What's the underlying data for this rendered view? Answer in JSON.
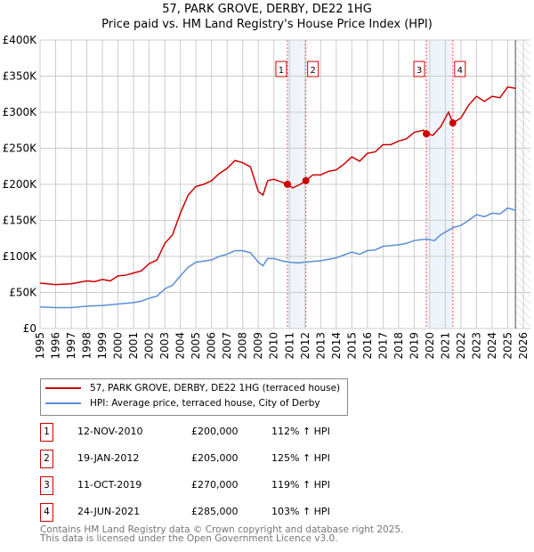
{
  "title": [
    "57, PARK GROVE, DERBY, DE22 1HG",
    "Price paid vs. HM Land Registry's House Price Index (HPI)"
  ],
  "chart_data": {
    "type": "line",
    "ylim": [
      0,
      400000
    ],
    "xlim": [
      1995,
      2026
    ],
    "yticks": [
      {
        "v": 0,
        "l": "£0"
      },
      {
        "v": 50000,
        "l": "£50K"
      },
      {
        "v": 100000,
        "l": "£100K"
      },
      {
        "v": 150000,
        "l": "£150K"
      },
      {
        "v": 200000,
        "l": "£200K"
      },
      {
        "v": 250000,
        "l": "£250K"
      },
      {
        "v": 300000,
        "l": "£300K"
      },
      {
        "v": 350000,
        "l": "£350K"
      },
      {
        "v": 400000,
        "l": "£400K"
      }
    ],
    "xticks": [
      "1995",
      "1996",
      "1997",
      "1998",
      "1999",
      "2000",
      "2001",
      "2002",
      "2003",
      "2004",
      "2005",
      "2006",
      "2007",
      "2008",
      "2009",
      "2010",
      "2011",
      "2012",
      "2013",
      "2014",
      "2015",
      "2016",
      "2017",
      "2018",
      "2019",
      "2020",
      "2021",
      "2022",
      "2023",
      "2024",
      "2025",
      "2026"
    ],
    "shaded": [
      [
        2010.87,
        2012.05
      ],
      [
        2019.78,
        2021.48
      ]
    ],
    "forecast_from": 2025.5,
    "series": [
      {
        "name": "57, PARK GROVE, DERBY, DE22 1HG (terraced house)",
        "color": "#cc0000",
        "points": [
          [
            1995,
            63
          ],
          [
            1996,
            61
          ],
          [
            1997,
            62
          ],
          [
            1998,
            66
          ],
          [
            1998.5,
            65
          ],
          [
            1999,
            68
          ],
          [
            1999.5,
            66
          ],
          [
            2000,
            73
          ],
          [
            2000.5,
            74
          ],
          [
            2001,
            77
          ],
          [
            2001.5,
            80
          ],
          [
            2002,
            90
          ],
          [
            2002.5,
            95
          ],
          [
            2003,
            118
          ],
          [
            2003.5,
            130
          ],
          [
            2004,
            160
          ],
          [
            2004.5,
            185
          ],
          [
            2005,
            197
          ],
          [
            2005.5,
            200
          ],
          [
            2006,
            205
          ],
          [
            2006.5,
            215
          ],
          [
            2007,
            222
          ],
          [
            2007.5,
            233
          ],
          [
            2008,
            230
          ],
          [
            2008.5,
            224
          ],
          [
            2009,
            190
          ],
          [
            2009.3,
            185
          ],
          [
            2009.6,
            205
          ],
          [
            2010,
            207
          ],
          [
            2010.5,
            203
          ],
          [
            2010.87,
            200
          ],
          [
            2011.2,
            195
          ],
          [
            2011.7,
            200
          ],
          [
            2012.05,
            205
          ],
          [
            2012.5,
            213
          ],
          [
            2013,
            213
          ],
          [
            2013.5,
            218
          ],
          [
            2014,
            220
          ],
          [
            2014.5,
            228
          ],
          [
            2015,
            238
          ],
          [
            2015.5,
            232
          ],
          [
            2016,
            243
          ],
          [
            2016.5,
            245
          ],
          [
            2017,
            255
          ],
          [
            2017.5,
            255
          ],
          [
            2018,
            260
          ],
          [
            2018.5,
            263
          ],
          [
            2019,
            272
          ],
          [
            2019.6,
            275
          ],
          [
            2019.78,
            270
          ],
          [
            2020.2,
            268
          ],
          [
            2020.7,
            280
          ],
          [
            2021.2,
            300
          ],
          [
            2021.48,
            285
          ],
          [
            2022,
            292
          ],
          [
            2022.5,
            310
          ],
          [
            2023,
            322
          ],
          [
            2023.5,
            315
          ],
          [
            2024,
            322
          ],
          [
            2024.5,
            320
          ],
          [
            2025,
            335
          ],
          [
            2025.5,
            333
          ]
        ]
      },
      {
        "name": "HPI: Average price, terraced house, City of Derby",
        "color": "#5b8fd4",
        "points": [
          [
            1995,
            30
          ],
          [
            1996,
            29
          ],
          [
            1997,
            29
          ],
          [
            1998,
            31
          ],
          [
            1999,
            32
          ],
          [
            2000,
            34
          ],
          [
            2001,
            36
          ],
          [
            2001.5,
            38
          ],
          [
            2002,
            42
          ],
          [
            2002.5,
            45
          ],
          [
            2003,
            55
          ],
          [
            2003.5,
            60
          ],
          [
            2004,
            73
          ],
          [
            2004.5,
            85
          ],
          [
            2005,
            92
          ],
          [
            2006,
            95
          ],
          [
            2006.5,
            100
          ],
          [
            2007,
            103
          ],
          [
            2007.5,
            108
          ],
          [
            2008,
            108
          ],
          [
            2008.5,
            105
          ],
          [
            2009,
            92
          ],
          [
            2009.3,
            87
          ],
          [
            2009.6,
            97
          ],
          [
            2010,
            97
          ],
          [
            2010.5,
            94
          ],
          [
            2011,
            92
          ],
          [
            2011.5,
            91
          ],
          [
            2012,
            92
          ],
          [
            2012.5,
            93
          ],
          [
            2013,
            94
          ],
          [
            2014,
            98
          ],
          [
            2014.5,
            102
          ],
          [
            2015,
            106
          ],
          [
            2015.5,
            103
          ],
          [
            2016,
            108
          ],
          [
            2016.5,
            109
          ],
          [
            2017,
            114
          ],
          [
            2018,
            116
          ],
          [
            2018.5,
            118
          ],
          [
            2019,
            122
          ],
          [
            2019.78,
            124
          ],
          [
            2020.3,
            122
          ],
          [
            2020.7,
            130
          ],
          [
            2021.5,
            140
          ],
          [
            2022,
            143
          ],
          [
            2022.5,
            150
          ],
          [
            2023,
            158
          ],
          [
            2023.5,
            155
          ],
          [
            2024,
            160
          ],
          [
            2024.5,
            159
          ],
          [
            2025,
            167
          ],
          [
            2025.5,
            164
          ]
        ]
      }
    ],
    "value_unit": "thousand GBP",
    "sales": [
      {
        "n": "1",
        "x": 2010.87,
        "y": 200,
        "date": "12-NOV-2010",
        "price": "£200,000",
        "hpi": "112% ↑ HPI"
      },
      {
        "n": "2",
        "x": 2012.05,
        "y": 205,
        "date": "19-JAN-2012",
        "price": "£205,000",
        "hpi": "125% ↑ HPI"
      },
      {
        "n": "3",
        "x": 2019.78,
        "y": 270,
        "date": "11-OCT-2019",
        "price": "£270,000",
        "hpi": "119% ↑ HPI"
      },
      {
        "n": "4",
        "x": 2021.48,
        "y": 285,
        "date": "24-JUN-2021",
        "price": "£285,000",
        "hpi": "103% ↑ HPI"
      }
    ]
  },
  "footer": [
    "Contains HM Land Registry data © Crown copyright and database right 2025.",
    "This data is licensed under the Open Government Licence v3.0."
  ]
}
